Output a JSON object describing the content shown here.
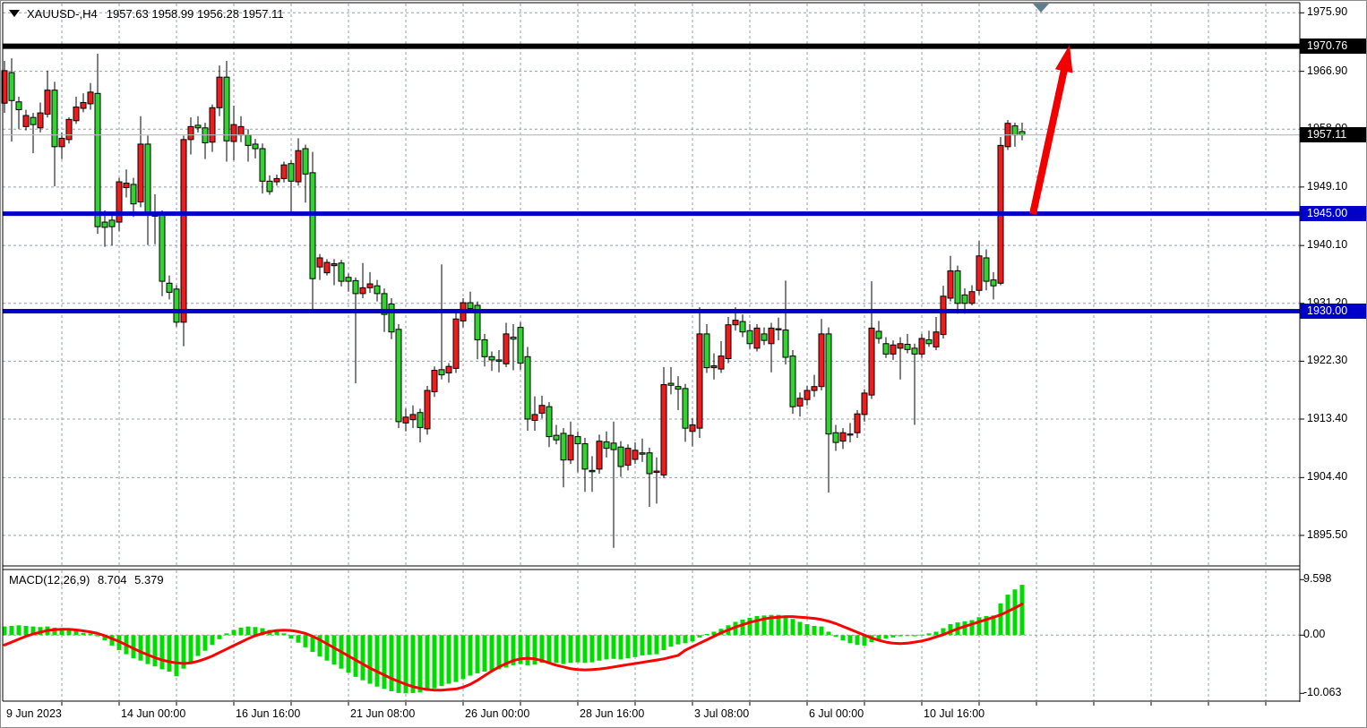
{
  "header": {
    "symbol_period": "XAUUSD-,H4",
    "ohlc": "1957.63 1958.99 1956.28 1957.11"
  },
  "macd_header": {
    "label": "MACD(12,26,9)",
    "main": "8.704",
    "signal": "5.379"
  },
  "colors": {
    "bull_candle": "#ee1c1c",
    "bear_candle": "#31d231",
    "wick": "#000000",
    "histogram": "#00dc00",
    "signal_line": "#ff0000",
    "support_line": "#0000c8",
    "resistance_line": "#000000",
    "current_price_line": "#b4b8ba",
    "grid": "#8fa0ae",
    "arrow": "#f20000",
    "shift_marker": "#5d7e90",
    "label_box_black": "#000000",
    "label_box_blue": "#0000c8"
  },
  "chart_data": {
    "type": "candlestick",
    "symbol": "XAUUSD",
    "timeframe": "H4",
    "title": "XAUUSD-,H4",
    "last_ohlc": {
      "open": 1957.63,
      "high": 1958.99,
      "low": 1956.28,
      "close": 1957.11
    },
    "current_price": 1957.11,
    "grid": "dashed",
    "y_axis_ticks": [
      {
        "label": "1975.90",
        "value": 1975.9
      },
      {
        "label": "1966.90",
        "value": 1966.9
      },
      {
        "label": "1958.00",
        "value": 1958.0
      },
      {
        "label": "1949.10",
        "value": 1949.1
      },
      {
        "label": "1940.10",
        "value": 1940.1
      },
      {
        "label": "1931.20",
        "value": 1931.2
      },
      {
        "label": "1922.30",
        "value": 1922.3
      },
      {
        "label": "1913.40",
        "value": 1913.4
      },
      {
        "label": "1904.40",
        "value": 1904.4
      },
      {
        "label": "1895.50",
        "value": 1895.5
      }
    ],
    "price_label_boxes": [
      {
        "text": "1970.76",
        "price": 1970.76,
        "bg": "#000000"
      },
      {
        "text": "1957.11",
        "price": 1957.11,
        "bg": "#000000"
      },
      {
        "text": "1945.00",
        "price": 1945.0,
        "bg": "#0000c8"
      },
      {
        "text": "1930.00",
        "price": 1930.0,
        "bg": "#0000c8"
      }
    ],
    "horizontal_lines": [
      {
        "price": 1970.76,
        "color": "#000000",
        "width": 6,
        "role": "resistance"
      },
      {
        "price": 1957.11,
        "color": "#b4b8ba",
        "width": 1,
        "role": "current-price"
      },
      {
        "price": 1945.0,
        "color": "#0000c8",
        "width": 5,
        "role": "support"
      },
      {
        "price": 1930.0,
        "color": "#0000c8",
        "width": 5,
        "role": "support"
      }
    ],
    "x_axis_labels": [
      {
        "text": "9 Jun 2023",
        "bar": 0
      },
      {
        "text": "14 Jun 00:00",
        "bar": 16
      },
      {
        "text": "16 Jun 16:00",
        "bar": 32
      },
      {
        "text": "21 Jun 08:00",
        "bar": 48
      },
      {
        "text": "26 Jun 00:00",
        "bar": 64
      },
      {
        "text": "28 Jun 16:00",
        "bar": 80
      },
      {
        "text": "3 Jul 08:00",
        "bar": 96
      },
      {
        "text": "6 Jul 00:00",
        "bar": 112
      },
      {
        "text": "10 Jul 16:00",
        "bar": 128
      }
    ],
    "candles": [
      [
        1962.0,
        1968.5,
        1960.5,
        1967.0
      ],
      [
        1966.7,
        1968.9,
        1956.1,
        1962.4
      ],
      [
        1962.2,
        1963.0,
        1958.0,
        1961.0
      ],
      [
        1958.4,
        1961.0,
        1957.8,
        1960.1
      ],
      [
        1959.8,
        1960.5,
        1954.3,
        1958.7
      ],
      [
        1958.2,
        1962.1,
        1957.5,
        1960.5
      ],
      [
        1960.3,
        1967.0,
        1959.8,
        1964.0
      ],
      [
        1964.0,
        1965.3,
        1949.2,
        1955.3
      ],
      [
        1955.3,
        1957.5,
        1953.4,
        1956.6
      ],
      [
        1956.4,
        1959.8,
        1955.8,
        1959.5
      ],
      [
        1959.3,
        1963.0,
        1958.8,
        1961.4
      ],
      [
        1961.2,
        1963.5,
        1960.6,
        1962.1
      ],
      [
        1961.9,
        1965.1,
        1961.0,
        1963.7
      ],
      [
        1963.5,
        1969.6,
        1941.9,
        1943.0
      ],
      [
        1943.7,
        1945.5,
        1939.9,
        1942.9
      ],
      [
        1944.0,
        1945.0,
        1940.1,
        1943.0
      ],
      [
        1943.7,
        1950.5,
        1942.3,
        1949.9
      ],
      [
        1949.0,
        1951.8,
        1947.5,
        1949.7
      ],
      [
        1949.5,
        1950.5,
        1944.5,
        1946.5
      ],
      [
        1946.8,
        1960.0,
        1946.0,
        1955.7
      ],
      [
        1955.7,
        1957.0,
        1940.2,
        1945.2
      ],
      [
        1945.0,
        1948.0,
        1940.3,
        1944.6
      ],
      [
        1944.9,
        1945.5,
        1932.3,
        1934.6
      ],
      [
        1934.3,
        1935.5,
        1931.8,
        1932.9
      ],
      [
        1933.4,
        1934.0,
        1927.6,
        1928.3
      ],
      [
        1928.3,
        1957.0,
        1924.6,
        1956.4
      ],
      [
        1956.4,
        1959.8,
        1954.1,
        1958.4
      ],
      [
        1958.6,
        1960.0,
        1957.5,
        1958.2
      ],
      [
        1958.2,
        1959.0,
        1953.4,
        1955.9
      ],
      [
        1956.0,
        1961.8,
        1954.5,
        1961.3
      ],
      [
        1961.3,
        1967.8,
        1960.0,
        1966.0
      ],
      [
        1966.0,
        1968.5,
        1953.0,
        1956.2
      ],
      [
        1956.1,
        1961.6,
        1953.2,
        1958.7
      ],
      [
        1957.1,
        1960.0,
        1956.0,
        1958.4
      ],
      [
        1957.1,
        1958.0,
        1953.0,
        1955.5
      ],
      [
        1955.7,
        1956.5,
        1953.5,
        1955.0
      ],
      [
        1955.0,
        1955.8,
        1948.1,
        1950.0
      ],
      [
        1950.0,
        1950.9,
        1947.9,
        1948.4
      ],
      [
        1949.9,
        1951.0,
        1949.3,
        1950.4
      ],
      [
        1950.4,
        1953.0,
        1949.8,
        1952.5
      ],
      [
        1952.7,
        1953.2,
        1945.1,
        1950.0
      ],
      [
        1949.9,
        1956.6,
        1949.3,
        1954.7
      ],
      [
        1955.0,
        1955.6,
        1946.7,
        1951.1
      ],
      [
        1951.3,
        1954.5,
        1929.8,
        1935.0
      ],
      [
        1936.8,
        1938.8,
        1934.8,
        1938.2
      ],
      [
        1935.9,
        1938.0,
        1935.5,
        1937.5
      ],
      [
        1937.0,
        1938.0,
        1934.0,
        1937.3
      ],
      [
        1937.4,
        1937.9,
        1933.8,
        1934.6
      ],
      [
        1935.2,
        1935.8,
        1933.0,
        1934.6
      ],
      [
        1934.7,
        1935.2,
        1918.9,
        1932.7
      ],
      [
        1932.7,
        1937.4,
        1932.0,
        1933.6
      ],
      [
        1933.6,
        1936.0,
        1932.8,
        1934.2
      ],
      [
        1933.9,
        1934.8,
        1931.5,
        1932.7
      ],
      [
        1932.7,
        1933.5,
        1926.8,
        1929.5
      ],
      [
        1931.1,
        1932.0,
        1925.7,
        1926.8
      ],
      [
        1927.2,
        1928.0,
        1912.0,
        1913.0
      ],
      [
        1912.8,
        1915.0,
        1911.5,
        1913.7
      ],
      [
        1913.3,
        1915.5,
        1912.0,
        1914.1
      ],
      [
        1914.4,
        1915.0,
        1909.8,
        1912.1
      ],
      [
        1911.9,
        1918.5,
        1911.0,
        1917.8
      ],
      [
        1917.6,
        1921.5,
        1916.8,
        1920.9
      ],
      [
        1921.0,
        1937.2,
        1919.5,
        1920.2
      ],
      [
        1920.5,
        1922.0,
        1919.0,
        1921.5
      ],
      [
        1921.2,
        1930.0,
        1920.5,
        1928.8
      ],
      [
        1928.5,
        1932.0,
        1927.5,
        1931.3
      ],
      [
        1931.3,
        1933.0,
        1929.8,
        1930.4
      ],
      [
        1930.9,
        1931.5,
        1922.6,
        1925.6
      ],
      [
        1925.6,
        1926.5,
        1921.5,
        1923.0
      ],
      [
        1923.0,
        1923.8,
        1920.8,
        1922.5
      ],
      [
        1922.5,
        1924.0,
        1920.6,
        1922.3
      ],
      [
        1921.9,
        1928.2,
        1921.4,
        1926.5
      ],
      [
        1926.0,
        1928.0,
        1920.9,
        1925.7
      ],
      [
        1927.5,
        1928.3,
        1921.0,
        1922.0
      ],
      [
        1923.0,
        1924.5,
        1911.6,
        1913.4
      ],
      [
        1913.2,
        1916.9,
        1911.6,
        1914.1
      ],
      [
        1914.3,
        1917.0,
        1913.5,
        1915.5
      ],
      [
        1915.3,
        1916.0,
        1909.1,
        1910.7
      ],
      [
        1910.9,
        1912.5,
        1909.5,
        1910.2
      ],
      [
        1911.2,
        1912.0,
        1902.9,
        1907.1
      ],
      [
        1907.1,
        1913.0,
        1906.5,
        1910.9
      ],
      [
        1910.7,
        1911.5,
        1905.2,
        1909.6
      ],
      [
        1909.6,
        1910.5,
        1902.2,
        1905.7
      ],
      [
        1905.5,
        1907.7,
        1902.2,
        1905.3
      ],
      [
        1905.7,
        1911.0,
        1905.0,
        1910.0
      ],
      [
        1909.9,
        1911.5,
        1907.5,
        1908.9
      ],
      [
        1909.7,
        1913.0,
        1893.6,
        1908.7
      ],
      [
        1909.1,
        1910.0,
        1904.5,
        1906.1
      ],
      [
        1906.3,
        1909.5,
        1905.5,
        1908.9
      ],
      [
        1907.2,
        1909.8,
        1906.5,
        1908.6
      ],
      [
        1908.2,
        1910.4,
        1906.8,
        1908.0
      ],
      [
        1908.2,
        1909.0,
        1899.9,
        1905.0
      ],
      [
        1905.2,
        1907.5,
        1900.4,
        1905.4
      ],
      [
        1904.8,
        1921.4,
        1904.3,
        1918.7
      ],
      [
        1918.9,
        1921.4,
        1917.2,
        1918.6
      ],
      [
        1918.4,
        1920.0,
        1914.8,
        1918.0
      ],
      [
        1918.1,
        1918.8,
        1909.9,
        1912.0
      ],
      [
        1911.5,
        1913.5,
        1909.2,
        1912.5
      ],
      [
        1912.0,
        1930.6,
        1910.5,
        1926.5
      ],
      [
        1926.5,
        1928.0,
        1920.5,
        1921.3
      ],
      [
        1921.3,
        1923.5,
        1919.5,
        1921.6
      ],
      [
        1921.1,
        1925.4,
        1920.5,
        1923.1
      ],
      [
        1922.7,
        1929.1,
        1922.0,
        1927.9
      ],
      [
        1927.9,
        1930.6,
        1927.0,
        1928.6
      ],
      [
        1928.4,
        1929.5,
        1926.0,
        1926.8
      ],
      [
        1927.0,
        1928.0,
        1924.2,
        1925.0
      ],
      [
        1924.3,
        1928.0,
        1923.8,
        1927.4
      ],
      [
        1926.5,
        1927.5,
        1924.8,
        1925.5
      ],
      [
        1925.0,
        1928.2,
        1920.6,
        1927.4
      ],
      [
        1927.3,
        1929.0,
        1925.5,
        1927.2
      ],
      [
        1927.1,
        1934.7,
        1921.8,
        1922.9
      ],
      [
        1923.1,
        1924.0,
        1914.2,
        1915.3
      ],
      [
        1915.4,
        1917.5,
        1913.8,
        1916.6
      ],
      [
        1916.4,
        1918.5,
        1915.5,
        1917.8
      ],
      [
        1917.8,
        1920.2,
        1916.8,
        1918.4
      ],
      [
        1918.4,
        1928.8,
        1917.8,
        1926.5
      ],
      [
        1926.5,
        1927.5,
        1902.1,
        1911.1
      ],
      [
        1911.3,
        1912.5,
        1908.5,
        1909.8
      ],
      [
        1910.0,
        1912.0,
        1908.8,
        1911.3
      ],
      [
        1911.1,
        1912.8,
        1909.8,
        1911.0
      ],
      [
        1911.3,
        1914.8,
        1910.5,
        1914.2
      ],
      [
        1914.1,
        1918.0,
        1913.0,
        1917.4
      ],
      [
        1917.1,
        1934.6,
        1916.5,
        1927.4
      ],
      [
        1926.9,
        1928.5,
        1925.0,
        1925.8
      ],
      [
        1925.0,
        1926.0,
        1922.8,
        1923.4
      ],
      [
        1923.4,
        1925.5,
        1922.5,
        1924.8
      ],
      [
        1924.3,
        1926.0,
        1919.5,
        1925.0
      ],
      [
        1924.9,
        1926.5,
        1923.5,
        1924.1
      ],
      [
        1924.3,
        1925.0,
        1912.5,
        1923.4
      ],
      [
        1923.4,
        1926.5,
        1922.8,
        1925.8
      ],
      [
        1925.6,
        1927.0,
        1924.5,
        1925.0
      ],
      [
        1924.5,
        1929.1,
        1924.0,
        1926.8
      ],
      [
        1926.4,
        1933.9,
        1925.8,
        1932.3
      ],
      [
        1932.0,
        1938.5,
        1931.5,
        1936.2
      ],
      [
        1936.2,
        1937.0,
        1929.6,
        1931.2
      ],
      [
        1932.5,
        1933.5,
        1929.6,
        1931.2
      ],
      [
        1931.2,
        1934.0,
        1930.9,
        1933.0
      ],
      [
        1933.2,
        1940.8,
        1932.5,
        1938.5
      ],
      [
        1938.2,
        1939.5,
        1933.2,
        1934.6
      ],
      [
        1934.8,
        1936.0,
        1931.8,
        1933.9
      ],
      [
        1934.3,
        1956.8,
        1934.0,
        1955.5
      ],
      [
        1955.3,
        1959.4,
        1954.8,
        1958.9
      ],
      [
        1958.5,
        1959.0,
        1955.3,
        1957.1
      ],
      [
        1957.63,
        1958.99,
        1956.28,
        1957.11
      ]
    ],
    "indicator": {
      "name": "MACD",
      "params": "12,26,9",
      "main_value": 8.704,
      "signal_value": 5.379,
      "axis_ticks": [
        {
          "label": "9.598",
          "value": 9.598
        },
        {
          "label": "0.00",
          "value": 0.0
        },
        {
          "label": "-10.063",
          "value": -10.063
        }
      ],
      "histogram": [
        1.5,
        1.6,
        1.7,
        1.6,
        1.5,
        1.4,
        1.5,
        1.3,
        1.2,
        1.1,
        1.0,
        0.4,
        0.3,
        -0.2,
        -0.9,
        -1.8,
        -2.6,
        -3.3,
        -4.0,
        -4.4,
        -5.0,
        -5.4,
        -5.9,
        -6.3,
        -7.1,
        -5.8,
        -4.6,
        -3.6,
        -2.7,
        -1.7,
        -0.7,
        0.3,
        0.9,
        1.3,
        1.5,
        1.4,
        1.2,
        0.9,
        0.6,
        0.3,
        -0.6,
        -1.3,
        -2.1,
        -2.9,
        -3.7,
        -4.4,
        -5.1,
        -5.8,
        -6.5,
        -7.2,
        -7.8,
        -8.4,
        -8.9,
        -9.3,
        -9.7,
        -10.0,
        -10.063,
        -10.0,
        -9.9,
        -9.6,
        -9.2,
        -8.8,
        -8.4,
        -8.1,
        -7.6,
        -7.0,
        -6.6,
        -6.3,
        -6.1,
        -5.9,
        -5.6,
        -5.2,
        -5.0,
        -5.2,
        -5.1,
        -4.8,
        -4.7,
        -4.8,
        -5.0,
        -4.8,
        -4.7,
        -4.8,
        -4.7,
        -4.4,
        -4.2,
        -4.1,
        -4.2,
        -4.0,
        -3.8,
        -3.5,
        -3.4,
        -3.3,
        -2.6,
        -2.0,
        -1.6,
        -1.4,
        -1.1,
        -0.4,
        0.2,
        0.6,
        1.1,
        1.7,
        2.3,
        2.7,
        3.0,
        3.3,
        3.4,
        3.5,
        3.5,
        3.3,
        2.8,
        2.3,
        1.9,
        1.6,
        1.5,
        0.6,
        -0.3,
        -0.9,
        -1.4,
        -1.7,
        -1.8,
        -1.2,
        -0.8,
        -0.6,
        -0.4,
        -0.2,
        -0.1,
        -0.2,
        0.1,
        0.3,
        0.6,
        1.2,
        1.9,
        2.2,
        2.4,
        2.6,
        3.1,
        3.3,
        3.4,
        5.5,
        7.0,
        7.9,
        8.704
      ],
      "signal": [
        -1.7,
        -1.2,
        -0.7,
        -0.2,
        0.2,
        0.5,
        0.8,
        0.95,
        1.0,
        1.0,
        0.9,
        0.75,
        0.55,
        0.3,
        -0.1,
        -0.6,
        -1.1,
        -1.7,
        -2.3,
        -2.9,
        -3.4,
        -3.9,
        -4.3,
        -4.6,
        -4.8,
        -4.9,
        -4.8,
        -4.5,
        -4.1,
        -3.6,
        -3.0,
        -2.4,
        -1.8,
        -1.2,
        -0.6,
        -0.1,
        0.3,
        0.6,
        0.8,
        0.85,
        0.8,
        0.6,
        0.3,
        -0.2,
        -0.8,
        -1.5,
        -2.2,
        -2.9,
        -3.6,
        -4.3,
        -5.0,
        -5.7,
        -6.3,
        -6.9,
        -7.5,
        -8.0,
        -8.5,
        -8.9,
        -9.2,
        -9.4,
        -9.5,
        -9.5,
        -9.4,
        -9.3,
        -9.0,
        -8.5,
        -7.8,
        -7.0,
        -6.2,
        -5.5,
        -4.9,
        -4.4,
        -4.1,
        -4.0,
        -4.1,
        -4.4,
        -4.8,
        -5.2,
        -5.5,
        -5.8,
        -5.95,
        -6.0,
        -5.95,
        -5.85,
        -5.7,
        -5.5,
        -5.3,
        -5.1,
        -4.9,
        -4.7,
        -4.5,
        -4.3,
        -4.1,
        -3.8,
        -3.5,
        -2.6,
        -2.0,
        -1.4,
        -0.8,
        -0.2,
        0.4,
        0.9,
        1.4,
        1.8,
        2.2,
        2.5,
        2.8,
        3.0,
        3.1,
        3.2,
        3.2,
        3.1,
        3.0,
        2.9,
        2.7,
        2.4,
        2.0,
        1.5,
        1.0,
        0.5,
        0.0,
        -0.5,
        -0.9,
        -1.2,
        -1.4,
        -1.45,
        -1.4,
        -1.2,
        -1.0,
        -0.7,
        -0.3,
        0.1,
        0.6,
        1.1,
        1.5,
        1.9,
        2.3,
        2.7,
        3.1,
        3.5,
        4.1,
        4.7,
        5.379
      ]
    },
    "annotation_arrow": {
      "direction": "up",
      "from_price": 1945.0,
      "to_price": 1970.76,
      "from_xy": [
        1152,
        238
      ],
      "to_xy": [
        1193,
        49
      ],
      "color": "#f20000"
    }
  }
}
